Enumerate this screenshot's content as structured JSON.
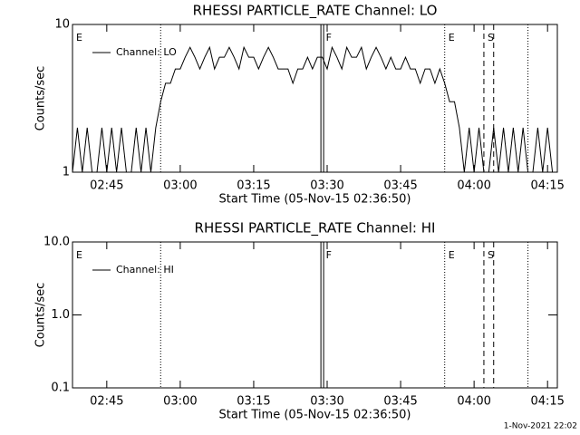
{
  "chart_data": [
    {
      "type": "line",
      "title": "RHESSI PARTICLE_RATE Channel: LO",
      "xlabel": "Start Time (05-Nov-15 02:36:50)",
      "ylabel": "Counts/sec",
      "log_y": true,
      "xlim": [
        "02:38",
        "04:17"
      ],
      "xticks": [
        "02:45",
        "03:00",
        "03:15",
        "03:30",
        "03:45",
        "04:00",
        "04:15"
      ],
      "ylim": [
        1,
        10
      ],
      "yticks": [
        1,
        10
      ],
      "x": [
        "02:38",
        "02:39",
        "02:40",
        "02:41",
        "02:42",
        "02:43",
        "02:44",
        "02:45",
        "02:46",
        "02:47",
        "02:48",
        "02:49",
        "02:50",
        "02:51",
        "02:52",
        "02:53",
        "02:54",
        "02:55",
        "02:56",
        "02:57",
        "02:58",
        "02:59",
        "03:00",
        "03:01",
        "03:02",
        "03:03",
        "03:04",
        "03:05",
        "03:06",
        "03:07",
        "03:08",
        "03:09",
        "03:10",
        "03:11",
        "03:12",
        "03:13",
        "03:14",
        "03:15",
        "03:16",
        "03:17",
        "03:18",
        "03:19",
        "03:20",
        "03:21",
        "03:22",
        "03:23",
        "03:24",
        "03:25",
        "03:26",
        "03:27",
        "03:28",
        "03:29",
        "03:30",
        "03:31",
        "03:32",
        "03:33",
        "03:34",
        "03:35",
        "03:36",
        "03:37",
        "03:38",
        "03:39",
        "03:40",
        "03:41",
        "03:42",
        "03:43",
        "03:44",
        "03:45",
        "03:46",
        "03:47",
        "03:48",
        "03:49",
        "03:50",
        "03:51",
        "03:52",
        "03:53",
        "03:54",
        "03:55",
        "03:56",
        "03:57",
        "03:58",
        "03:59",
        "04:00",
        "04:01",
        "04:02",
        "04:03",
        "04:04",
        "04:05",
        "04:06",
        "04:07",
        "04:08",
        "04:09",
        "04:10",
        "04:11",
        "04:12",
        "04:13",
        "04:14",
        "04:15",
        "04:16"
      ],
      "series": [
        {
          "name": "Channel: LO",
          "color": "#000000",
          "values": [
            1,
            2,
            1,
            2,
            1,
            1,
            2,
            1,
            2,
            1,
            2,
            1,
            1,
            2,
            1,
            2,
            1,
            2,
            3,
            4,
            4,
            5,
            5,
            6,
            7,
            6,
            5,
            6,
            7,
            5,
            6,
            6,
            7,
            6,
            5,
            7,
            6,
            6,
            5,
            6,
            7,
            6,
            5,
            5,
            5,
            4,
            5,
            5,
            6,
            5,
            6,
            6,
            5,
            7,
            6,
            5,
            7,
            6,
            6,
            7,
            5,
            6,
            7,
            6,
            5,
            6,
            5,
            5,
            6,
            5,
            5,
            4,
            5,
            5,
            4,
            5,
            4,
            3,
            3,
            2,
            1,
            2,
            1,
            2,
            1,
            1,
            2,
            1,
            2,
            1,
            2,
            1,
            2,
            1,
            1,
            2,
            1,
            2,
            1
          ]
        }
      ]
    },
    {
      "type": "line",
      "title": "RHESSI PARTICLE_RATE Channel: HI",
      "xlabel": "Start Time (05-Nov-15 02:36:50)",
      "ylabel": "Counts/sec",
      "log_y": true,
      "xlim": [
        "02:38",
        "04:17"
      ],
      "xticks": [
        "02:45",
        "03:00",
        "03:15",
        "03:30",
        "03:45",
        "04:00",
        "04:15"
      ],
      "ylim": [
        0.1,
        10
      ],
      "yticks": [
        0.1,
        {
          "value": 1,
          "label": "1.0"
        },
        {
          "value": 10,
          "label": "10.0"
        }
      ],
      "x": [],
      "series": [
        {
          "name": "Channel: HI",
          "color": "#000000",
          "values": []
        }
      ]
    }
  ],
  "markers": [
    {
      "x": "02:38",
      "label": "E"
    },
    {
      "x": "02:56",
      "style": "dotted"
    },
    {
      "x": "03:29",
      "label": "F",
      "style": "double"
    },
    {
      "x": "03:54",
      "label": "E",
      "style": "dotted"
    },
    {
      "x": "04:02",
      "label": "S",
      "style": "dashed"
    },
    {
      "x": "04:04",
      "style": "dashed"
    },
    {
      "x": "04:11",
      "style": "dotted"
    }
  ],
  "footer": "1-Nov-2021 22:02"
}
